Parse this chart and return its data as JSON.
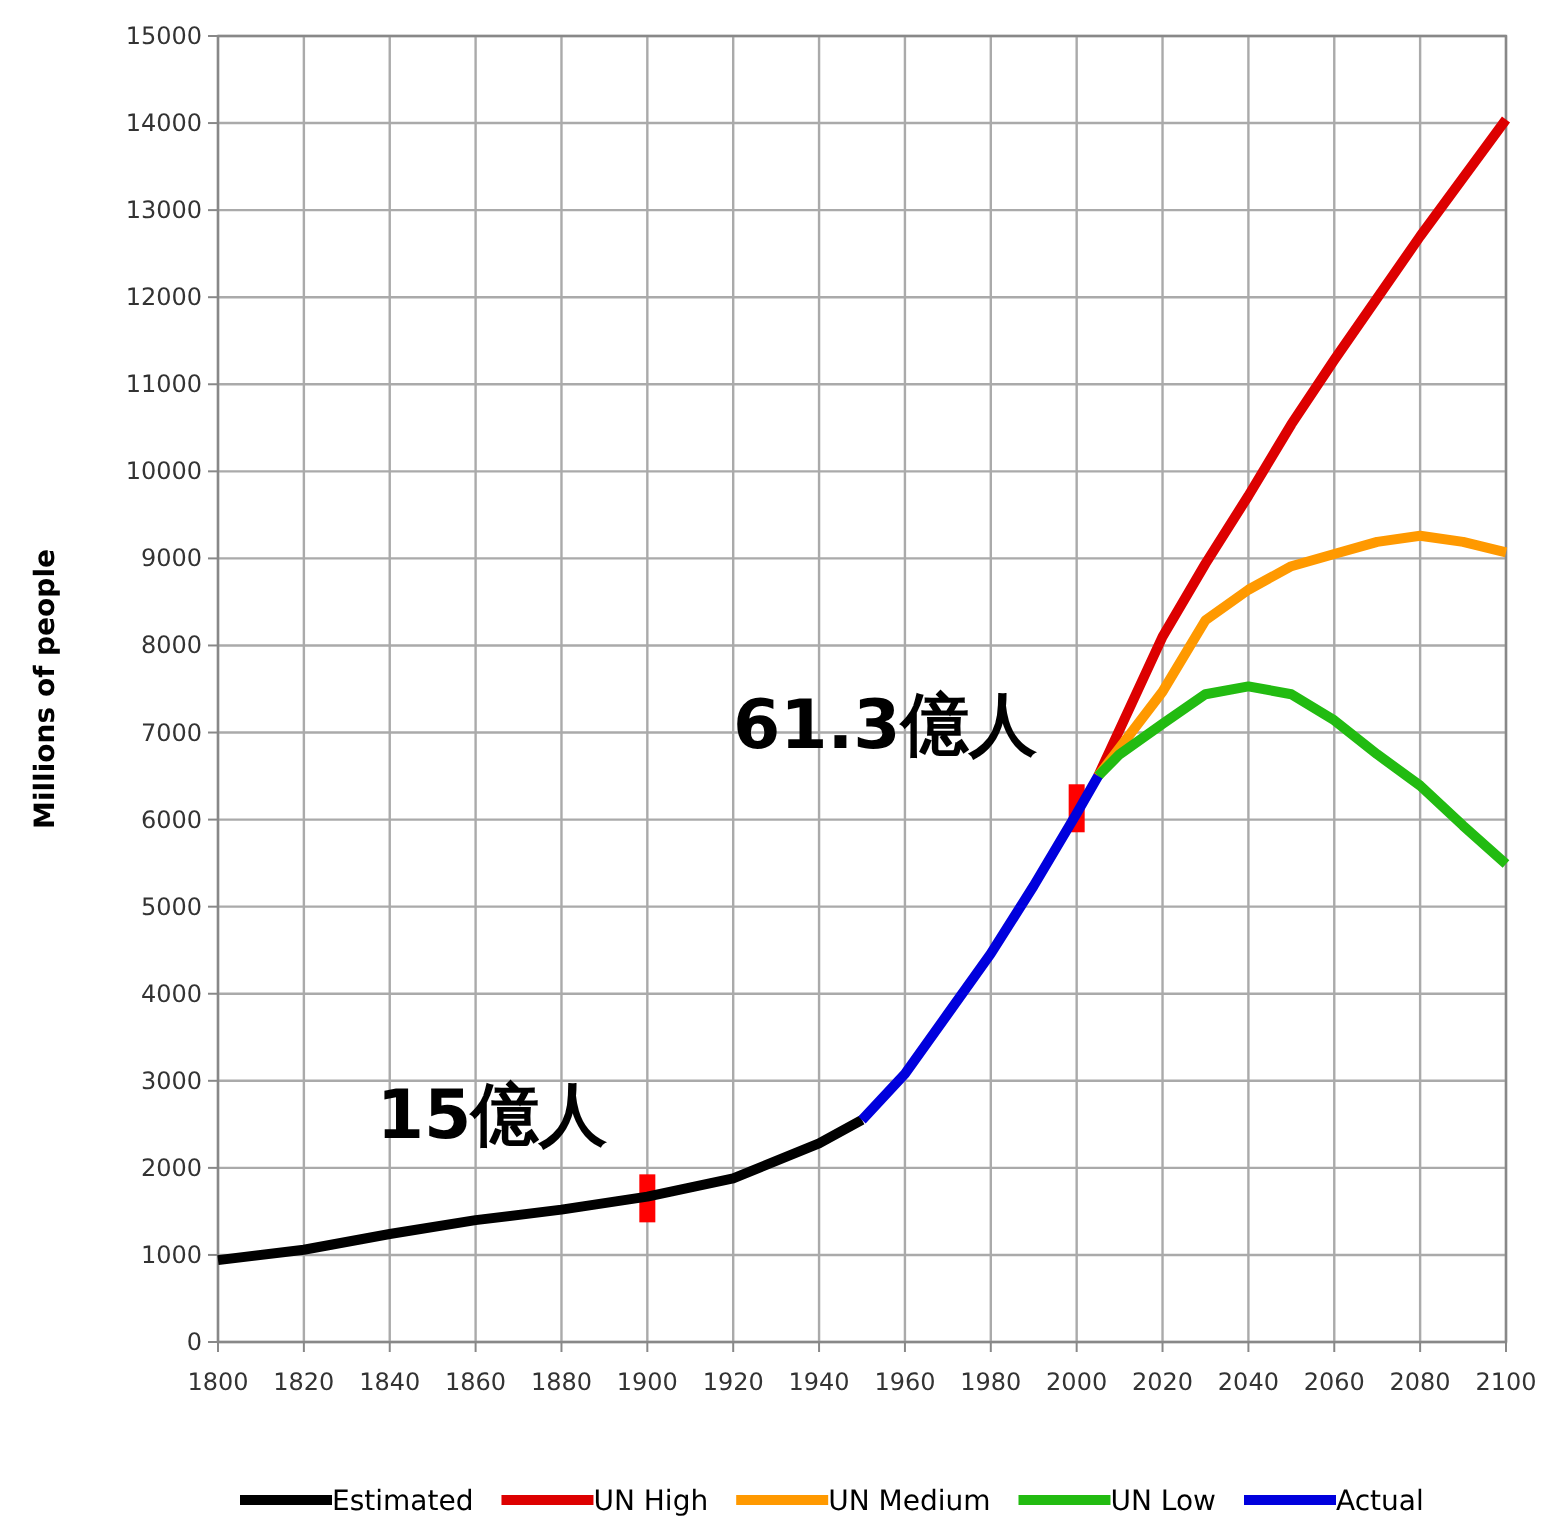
{
  "chart_data": {
    "type": "line",
    "ylabel": "Millions of people",
    "xlim": [
      1800,
      2100
    ],
    "xticks": [
      1800,
      1820,
      1840,
      1860,
      1880,
      1900,
      1920,
      1940,
      1960,
      1980,
      2000,
      2020,
      2040,
      2060,
      2080,
      2100
    ],
    "ylim": [
      0,
      15000
    ],
    "yticks": [
      0,
      1000,
      2000,
      3000,
      4000,
      5000,
      6000,
      7000,
      8000,
      9000,
      10000,
      11000,
      12000,
      13000,
      14000,
      15000
    ],
    "grid": true,
    "legend": "bottom",
    "marker": "none",
    "line_style": "solid",
    "series": [
      {
        "name": "Estimated",
        "color": "#000000",
        "x": [
          1800,
          1820,
          1840,
          1860,
          1880,
          1900,
          1920,
          1940,
          1950
        ],
        "values": [
          940,
          1060,
          1240,
          1400,
          1520,
          1670,
          1880,
          2280,
          2550
        ]
      },
      {
        "name": "UN High",
        "color": "#dd0000",
        "x": [
          2005,
          2020,
          2030,
          2040,
          2050,
          2060,
          2080,
          2100
        ],
        "values": [
          6500,
          8100,
          8940,
          9720,
          10540,
          11280,
          12700,
          14040
        ]
      },
      {
        "name": "UN Medium",
        "color": "#ff9900",
        "x": [
          2005,
          2020,
          2030,
          2040,
          2050,
          2060,
          2070,
          2080,
          2090,
          2100
        ],
        "values": [
          6500,
          7470,
          8290,
          8640,
          8910,
          9050,
          9190,
          9260,
          9190,
          9070
        ]
      },
      {
        "name": "UN Low",
        "color": "#22bb11",
        "x": [
          2005,
          2010,
          2020,
          2030,
          2040,
          2050,
          2060,
          2070,
          2080,
          2090,
          2100
        ],
        "values": [
          6500,
          6750,
          7100,
          7440,
          7530,
          7440,
          7140,
          6750,
          6390,
          5930,
          5490
        ]
      },
      {
        "name": "Actual",
        "color": "#0000dd",
        "x": [
          1950,
          1960,
          1970,
          1980,
          1990,
          2000,
          2005
        ],
        "values": [
          2550,
          3080,
          3770,
          4460,
          5240,
          6070,
          6500
        ]
      }
    ],
    "annotations": [
      {
        "text": "15億人",
        "x": 1900,
        "y": 1650
      },
      {
        "text": "61.3億人",
        "x": 2000,
        "y": 6130
      }
    ]
  }
}
